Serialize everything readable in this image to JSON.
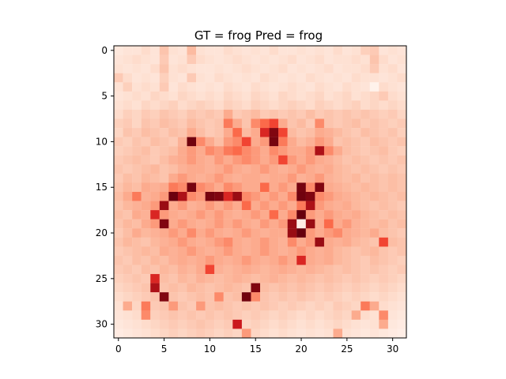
{
  "chart_data": {
    "type": "heatmap",
    "title": "GT = frog Pred = frog",
    "colormap": "Reds",
    "xlim": [
      -0.5,
      31.5
    ],
    "ylim": [
      31.5,
      -0.5
    ],
    "xticks": [
      0,
      5,
      10,
      15,
      20,
      25,
      30
    ],
    "yticks": [
      0,
      5,
      10,
      15,
      20,
      25,
      30
    ],
    "grid": false,
    "rows": 32,
    "cols": 32,
    "values": [
      [
        0.08,
        0.1,
        0.1,
        0.14,
        0.1,
        0.22,
        0.12,
        0.1,
        0.25,
        0.12,
        0.1,
        0.1,
        0.14,
        0.12,
        0.1,
        0.12,
        0.1,
        0.14,
        0.1,
        0.1,
        0.12,
        0.1,
        0.12,
        0.1,
        0.14,
        0.1,
        0.12,
        0.18,
        0.2,
        0.1,
        0.12,
        0.1
      ],
      [
        0.1,
        0.12,
        0.14,
        0.12,
        0.1,
        0.2,
        0.1,
        0.12,
        0.2,
        0.14,
        0.12,
        0.1,
        0.12,
        0.14,
        0.12,
        0.1,
        0.12,
        0.1,
        0.12,
        0.14,
        0.1,
        0.12,
        0.14,
        0.1,
        0.12,
        0.12,
        0.14,
        0.12,
        0.22,
        0.14,
        0.1,
        0.12
      ],
      [
        0.12,
        0.1,
        0.12,
        0.1,
        0.14,
        0.22,
        0.12,
        0.14,
        0.12,
        0.1,
        0.1,
        0.12,
        0.1,
        0.12,
        0.14,
        0.12,
        0.1,
        0.12,
        0.14,
        0.1,
        0.12,
        0.1,
        0.12,
        0.14,
        0.1,
        0.12,
        0.12,
        0.14,
        0.2,
        0.12,
        0.14,
        0.1
      ],
      [
        0.2,
        0.14,
        0.1,
        0.12,
        0.1,
        0.18,
        0.12,
        0.1,
        0.2,
        0.12,
        0.1,
        0.14,
        0.12,
        0.1,
        0.12,
        0.1,
        0.14,
        0.12,
        0.1,
        0.12,
        0.1,
        0.14,
        0.12,
        0.1,
        0.12,
        0.1,
        0.14,
        0.12,
        0.12,
        0.1,
        0.12,
        0.14
      ],
      [
        0.12,
        0.18,
        0.12,
        0.14,
        0.12,
        0.2,
        0.1,
        0.14,
        0.12,
        0.1,
        0.12,
        0.1,
        0.14,
        0.12,
        0.1,
        0.14,
        0.12,
        0.1,
        0.12,
        0.14,
        0.12,
        0.1,
        0.14,
        0.12,
        0.1,
        0.14,
        0.12,
        0.1,
        0.02,
        0.14,
        0.12,
        0.1
      ],
      [
        0.1,
        0.12,
        0.14,
        0.12,
        0.16,
        0.14,
        0.12,
        0.16,
        0.14,
        0.12,
        0.14,
        0.12,
        0.16,
        0.14,
        0.12,
        0.16,
        0.14,
        0.12,
        0.16,
        0.14,
        0.12,
        0.14,
        0.16,
        0.12,
        0.14,
        0.16,
        0.12,
        0.14,
        0.16,
        0.2,
        0.14,
        0.12
      ],
      [
        0.12,
        0.14,
        0.12,
        0.16,
        0.14,
        0.16,
        0.18,
        0.14,
        0.16,
        0.18,
        0.16,
        0.14,
        0.18,
        0.16,
        0.14,
        0.18,
        0.16,
        0.14,
        0.16,
        0.18,
        0.16,
        0.14,
        0.18,
        0.16,
        0.14,
        0.16,
        0.18,
        0.14,
        0.16,
        0.14,
        0.16,
        0.14
      ],
      [
        0.14,
        0.18,
        0.16,
        0.2,
        0.18,
        0.22,
        0.2,
        0.18,
        0.22,
        0.2,
        0.22,
        0.2,
        0.3,
        0.2,
        0.22,
        0.25,
        0.2,
        0.22,
        0.2,
        0.22,
        0.2,
        0.24,
        0.2,
        0.22,
        0.2,
        0.22,
        0.2,
        0.22,
        0.2,
        0.18,
        0.2,
        0.16
      ],
      [
        0.18,
        0.2,
        0.16,
        0.22,
        0.2,
        0.24,
        0.22,
        0.2,
        0.25,
        0.22,
        0.2,
        0.22,
        0.45,
        0.3,
        0.22,
        0.4,
        0.5,
        0.6,
        0.3,
        0.22,
        0.25,
        0.2,
        0.4,
        0.22,
        0.2,
        0.22,
        0.24,
        0.2,
        0.22,
        0.2,
        0.18,
        0.2
      ],
      [
        0.16,
        0.22,
        0.2,
        0.24,
        0.22,
        0.2,
        0.24,
        0.22,
        0.3,
        0.24,
        0.2,
        0.22,
        0.3,
        0.5,
        0.25,
        0.3,
        0.7,
        0.95,
        0.6,
        0.25,
        0.22,
        0.24,
        0.3,
        0.28,
        0.25,
        0.22,
        0.2,
        0.24,
        0.22,
        0.2,
        0.22,
        0.18
      ],
      [
        0.2,
        0.18,
        0.22,
        0.2,
        0.24,
        0.22,
        0.2,
        0.28,
        0.98,
        0.4,
        0.3,
        0.24,
        0.35,
        0.4,
        0.6,
        0.3,
        0.35,
        0.97,
        0.45,
        0.3,
        0.25,
        0.28,
        0.35,
        0.3,
        0.22,
        0.24,
        0.22,
        0.2,
        0.24,
        0.22,
        0.2,
        0.22
      ],
      [
        0.18,
        0.2,
        0.22,
        0.24,
        0.2,
        0.22,
        0.24,
        0.3,
        0.35,
        0.3,
        0.4,
        0.35,
        0.45,
        0.5,
        0.4,
        0.35,
        0.3,
        0.4,
        0.35,
        0.3,
        0.3,
        0.35,
        0.85,
        0.4,
        0.3,
        0.24,
        0.22,
        0.2,
        0.22,
        0.24,
        0.2,
        0.18
      ],
      [
        0.2,
        0.22,
        0.24,
        0.22,
        0.2,
        0.24,
        0.28,
        0.3,
        0.35,
        0.3,
        0.28,
        0.35,
        0.3,
        0.35,
        0.4,
        0.35,
        0.3,
        0.35,
        0.6,
        0.35,
        0.3,
        0.35,
        0.3,
        0.28,
        0.25,
        0.22,
        0.24,
        0.22,
        0.2,
        0.22,
        0.2,
        0.22
      ],
      [
        0.22,
        0.2,
        0.22,
        0.24,
        0.26,
        0.22,
        0.24,
        0.28,
        0.3,
        0.3,
        0.28,
        0.3,
        0.35,
        0.3,
        0.28,
        0.3,
        0.35,
        0.3,
        0.28,
        0.3,
        0.35,
        0.3,
        0.28,
        0.3,
        0.26,
        0.24,
        0.22,
        0.24,
        0.22,
        0.2,
        0.22,
        0.2
      ],
      [
        0.2,
        0.24,
        0.22,
        0.26,
        0.24,
        0.22,
        0.3,
        0.35,
        0.3,
        0.28,
        0.3,
        0.35,
        0.3,
        0.28,
        0.3,
        0.3,
        0.28,
        0.3,
        0.3,
        0.35,
        0.28,
        0.3,
        0.35,
        0.28,
        0.26,
        0.24,
        0.26,
        0.22,
        0.24,
        0.22,
        0.24,
        0.22
      ],
      [
        0.22,
        0.26,
        0.24,
        0.3,
        0.28,
        0.3,
        0.45,
        0.4,
        0.97,
        0.4,
        0.35,
        0.3,
        0.4,
        0.35,
        0.3,
        0.3,
        0.5,
        0.3,
        0.35,
        0.3,
        0.97,
        0.4,
        0.95,
        0.3,
        0.28,
        0.26,
        0.24,
        0.26,
        0.24,
        0.22,
        0.24,
        0.22
      ],
      [
        0.24,
        0.3,
        0.45,
        0.28,
        0.3,
        0.35,
        0.99,
        0.85,
        0.4,
        0.35,
        0.97,
        0.95,
        0.7,
        0.9,
        0.4,
        0.35,
        0.3,
        0.35,
        0.3,
        0.4,
        0.98,
        0.95,
        0.4,
        0.35,
        0.3,
        0.28,
        0.26,
        0.24,
        0.26,
        0.24,
        0.22,
        0.24
      ],
      [
        0.22,
        0.26,
        0.28,
        0.3,
        0.35,
        0.9,
        0.3,
        0.35,
        0.28,
        0.3,
        0.35,
        0.3,
        0.35,
        0.3,
        0.5,
        0.3,
        0.35,
        0.3,
        0.35,
        0.3,
        0.45,
        0.85,
        0.35,
        0.3,
        0.28,
        0.3,
        0.26,
        0.24,
        0.22,
        0.24,
        0.22,
        0.2
      ],
      [
        0.24,
        0.22,
        0.3,
        0.28,
        0.7,
        0.35,
        0.3,
        0.28,
        0.3,
        0.35,
        0.3,
        0.35,
        0.3,
        0.28,
        0.3,
        0.35,
        0.3,
        0.5,
        0.3,
        0.4,
        1.0,
        0.35,
        0.3,
        0.35,
        0.3,
        0.28,
        0.3,
        0.26,
        0.24,
        0.22,
        0.24,
        0.22
      ],
      [
        0.22,
        0.26,
        0.24,
        0.3,
        0.35,
        0.95,
        0.3,
        0.35,
        0.3,
        0.28,
        0.3,
        0.35,
        0.3,
        0.35,
        0.3,
        0.28,
        0.35,
        0.3,
        0.35,
        0.9,
        0.05,
        0.9,
        0.3,
        0.5,
        0.3,
        0.35,
        0.28,
        0.26,
        0.24,
        0.26,
        0.22,
        0.24
      ],
      [
        0.2,
        0.24,
        0.3,
        0.26,
        0.28,
        0.3,
        0.35,
        0.3,
        0.4,
        0.3,
        0.35,
        0.3,
        0.28,
        0.3,
        0.35,
        0.3,
        0.28,
        0.3,
        0.3,
        0.9,
        1.0,
        0.35,
        0.3,
        0.35,
        0.4,
        0.3,
        0.28,
        0.26,
        0.3,
        0.24,
        0.22,
        0.2
      ],
      [
        0.22,
        0.26,
        0.24,
        0.22,
        0.26,
        0.28,
        0.3,
        0.35,
        0.3,
        0.28,
        0.3,
        0.35,
        0.4,
        0.3,
        0.28,
        0.3,
        0.35,
        0.3,
        0.28,
        0.4,
        0.3,
        0.35,
        0.9,
        0.3,
        0.28,
        0.3,
        0.26,
        0.24,
        0.22,
        0.6,
        0.24,
        0.22
      ],
      [
        0.2,
        0.22,
        0.24,
        0.26,
        0.24,
        0.3,
        0.28,
        0.3,
        0.35,
        0.3,
        0.28,
        0.3,
        0.35,
        0.3,
        0.28,
        0.3,
        0.35,
        0.3,
        0.28,
        0.3,
        0.35,
        0.3,
        0.28,
        0.3,
        0.26,
        0.24,
        0.22,
        0.24,
        0.26,
        0.22,
        0.2,
        0.22
      ],
      [
        0.22,
        0.2,
        0.24,
        0.22,
        0.26,
        0.24,
        0.28,
        0.3,
        0.28,
        0.3,
        0.35,
        0.3,
        0.28,
        0.3,
        0.35,
        0.3,
        0.28,
        0.3,
        0.35,
        0.3,
        0.7,
        0.3,
        0.28,
        0.3,
        0.26,
        0.24,
        0.22,
        0.2,
        0.24,
        0.22,
        0.2,
        0.18
      ],
      [
        0.2,
        0.22,
        0.2,
        0.24,
        0.22,
        0.26,
        0.24,
        0.28,
        0.26,
        0.3,
        0.6,
        0.28,
        0.26,
        0.28,
        0.3,
        0.28,
        0.26,
        0.28,
        0.3,
        0.28,
        0.26,
        0.28,
        0.26,
        0.24,
        0.22,
        0.24,
        0.22,
        0.2,
        0.22,
        0.2,
        0.18,
        0.2
      ],
      [
        0.18,
        0.2,
        0.22,
        0.2,
        0.7,
        0.24,
        0.22,
        0.26,
        0.24,
        0.28,
        0.26,
        0.24,
        0.26,
        0.28,
        0.26,
        0.24,
        0.26,
        0.28,
        0.26,
        0.24,
        0.26,
        0.24,
        0.22,
        0.24,
        0.22,
        0.2,
        0.22,
        0.2,
        0.18,
        0.2,
        0.18,
        0.16
      ],
      [
        0.16,
        0.18,
        0.2,
        0.22,
        0.85,
        0.22,
        0.24,
        0.22,
        0.26,
        0.24,
        0.22,
        0.24,
        0.26,
        0.24,
        0.22,
        0.95,
        0.24,
        0.22,
        0.24,
        0.22,
        0.24,
        0.22,
        0.2,
        0.22,
        0.2,
        0.18,
        0.2,
        0.18,
        0.16,
        0.18,
        0.16,
        0.14
      ],
      [
        0.14,
        0.16,
        0.18,
        0.2,
        0.22,
        0.95,
        0.22,
        0.2,
        0.22,
        0.24,
        0.22,
        0.4,
        0.22,
        0.24,
        0.98,
        0.4,
        0.22,
        0.2,
        0.22,
        0.2,
        0.22,
        0.2,
        0.18,
        0.2,
        0.18,
        0.16,
        0.18,
        0.16,
        0.14,
        0.16,
        0.14,
        0.12
      ],
      [
        0.12,
        0.3,
        0.16,
        0.45,
        0.2,
        0.22,
        0.35,
        0.22,
        0.2,
        0.35,
        0.22,
        0.24,
        0.22,
        0.2,
        0.22,
        0.2,
        0.22,
        0.2,
        0.18,
        0.2,
        0.18,
        0.16,
        0.18,
        0.16,
        0.2,
        0.18,
        0.16,
        0.45,
        0.3,
        0.14,
        0.12,
        0.1
      ],
      [
        0.1,
        0.12,
        0.14,
        0.4,
        0.18,
        0.2,
        0.22,
        0.2,
        0.22,
        0.2,
        0.22,
        0.2,
        0.22,
        0.2,
        0.18,
        0.2,
        0.18,
        0.16,
        0.18,
        0.16,
        0.14,
        0.16,
        0.14,
        0.16,
        0.18,
        0.16,
        0.3,
        0.14,
        0.12,
        0.4,
        0.1,
        0.08
      ],
      [
        0.08,
        0.1,
        0.12,
        0.14,
        0.16,
        0.18,
        0.2,
        0.18,
        0.2,
        0.22,
        0.2,
        0.18,
        0.2,
        0.75,
        0.16,
        0.18,
        0.16,
        0.14,
        0.16,
        0.14,
        0.12,
        0.14,
        0.12,
        0.14,
        0.16,
        0.14,
        0.12,
        0.1,
        0.12,
        0.3,
        0.08,
        0.06
      ],
      [
        0.06,
        0.08,
        0.1,
        0.12,
        0.14,
        0.16,
        0.18,
        0.16,
        0.18,
        0.2,
        0.18,
        0.16,
        0.18,
        0.16,
        0.35,
        0.16,
        0.14,
        0.12,
        0.14,
        0.12,
        0.1,
        0.12,
        0.1,
        0.12,
        0.3,
        0.12,
        0.1,
        0.08,
        0.1,
        0.08,
        0.06,
        0.04
      ]
    ]
  }
}
